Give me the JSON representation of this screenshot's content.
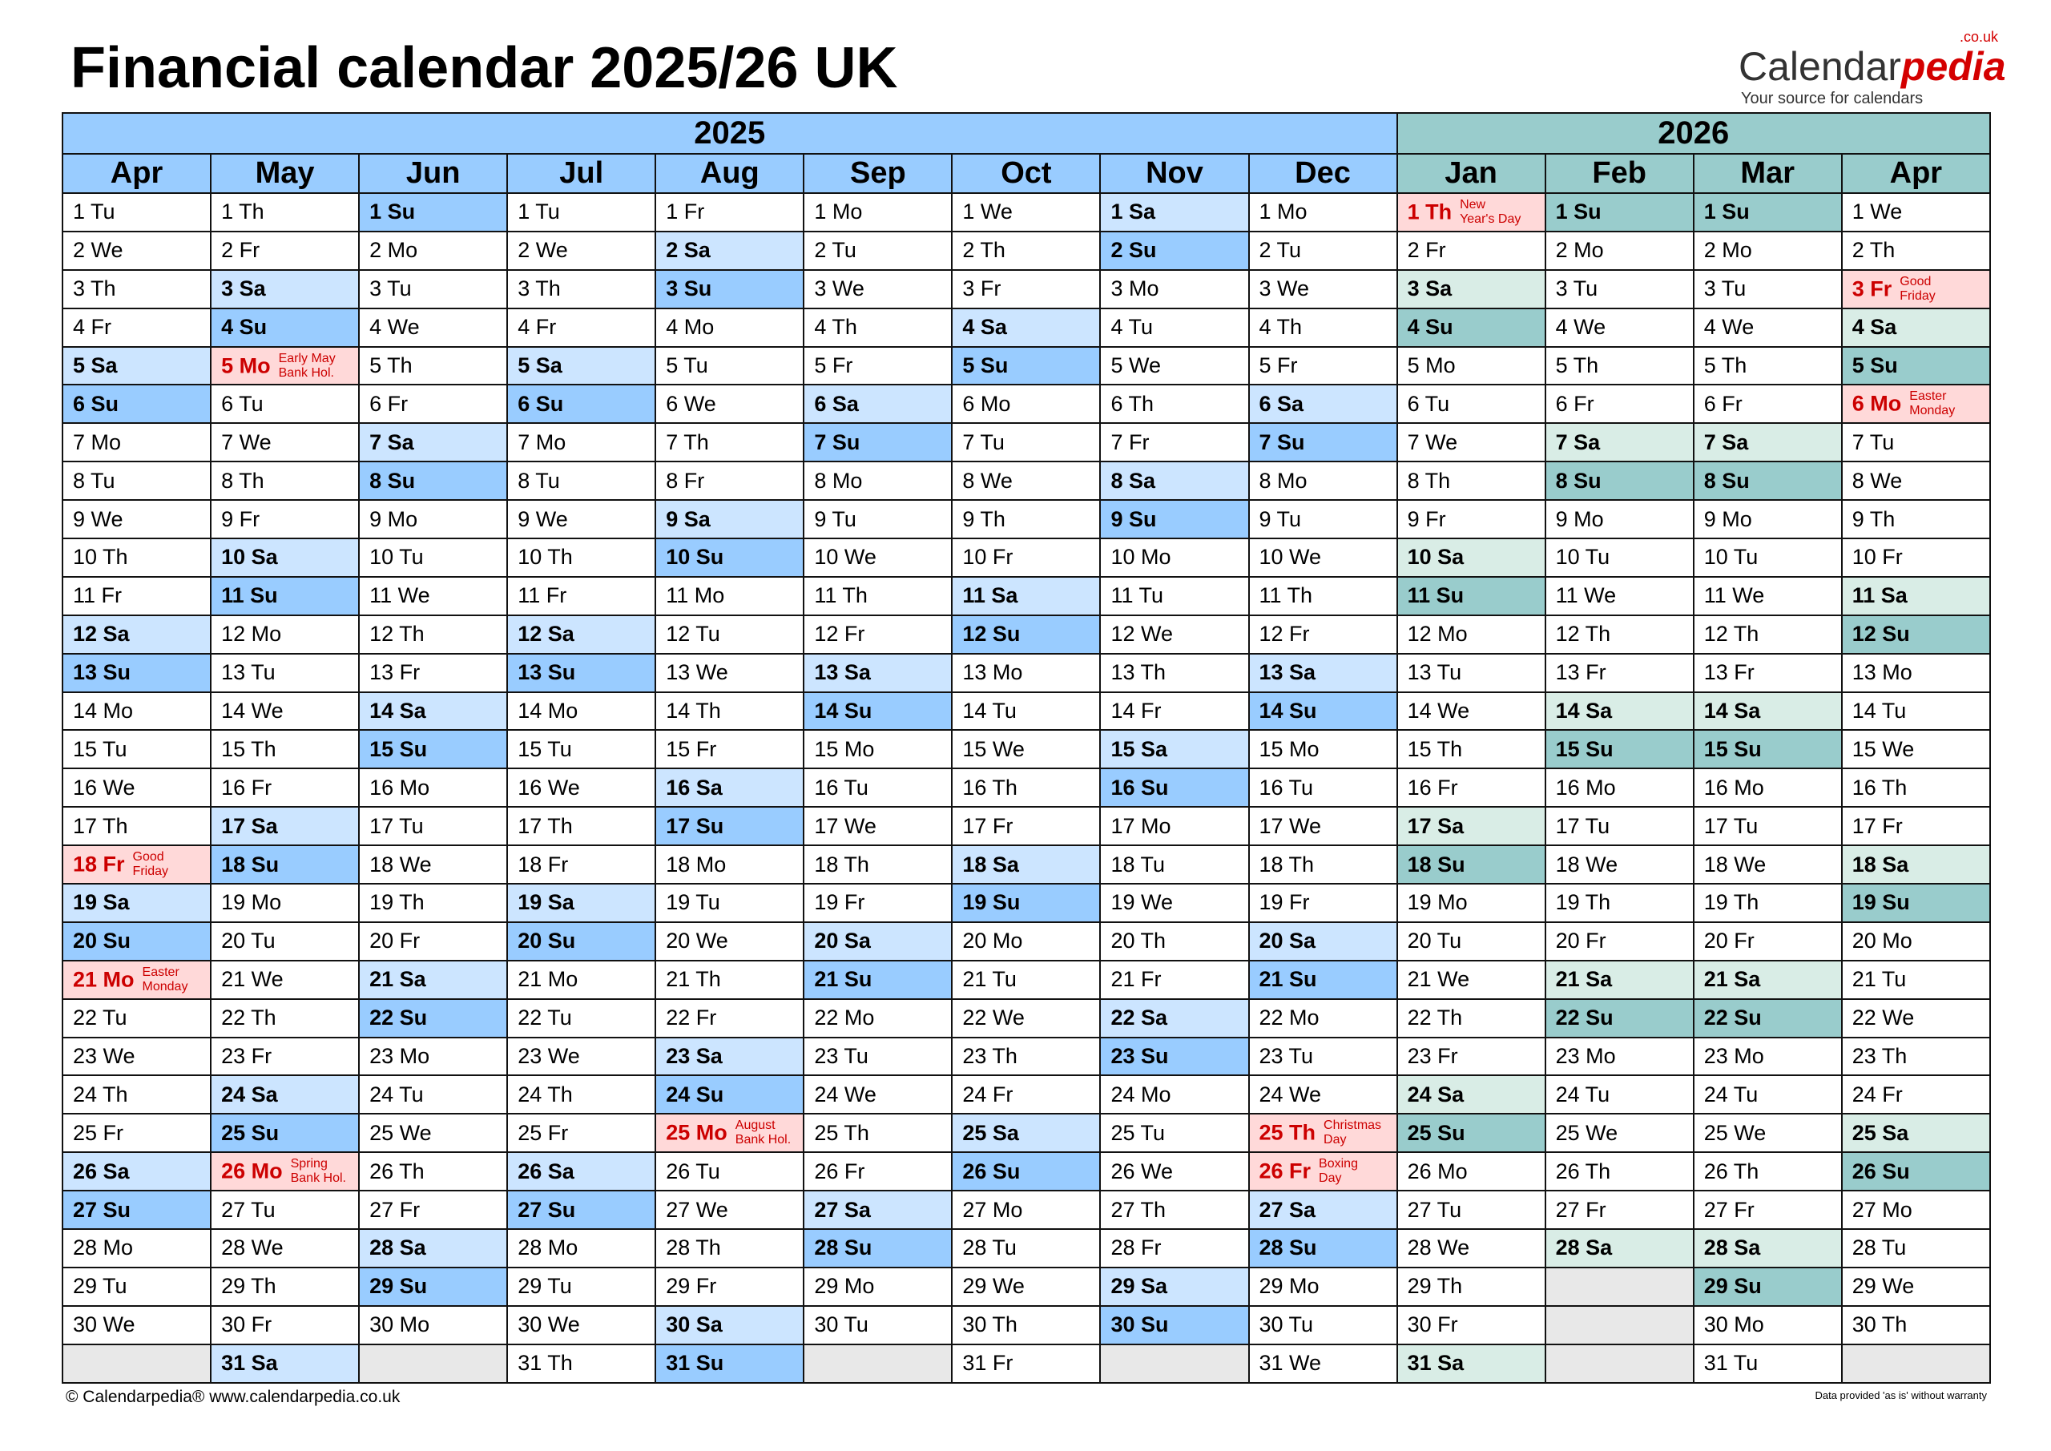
{
  "title": "Financial calendar 2025/26 UK",
  "logo": {
    "name_part1": "Calendar",
    "name_part2": "pedia",
    "domain": ".co.uk",
    "tagline": "Your source for calendars"
  },
  "colors": {
    "header_2025": "#99ccff",
    "saturday_2025": "#cce5ff",
    "sunday_2025": "#99ccff",
    "header_2026": "#99cccc",
    "saturday_2026": "#d9ede6",
    "sunday_2026": "#99cccc",
    "holiday_bg": "#ffd9d9",
    "holiday_text": "#cc0000",
    "empty": "#e8e8e8"
  },
  "years": [
    {
      "label": "2025",
      "months": 9
    },
    {
      "label": "2026",
      "months": 4
    }
  ],
  "months": [
    {
      "name": "Apr",
      "year": "2025",
      "days": [
        "1 Tu",
        "2 We",
        "3 Th",
        "4 Fr",
        "5 Sa",
        "6 Su",
        "7 Mo",
        "8 Tu",
        "9 We",
        "10 Th",
        "11 Fr",
        "12 Sa",
        "13 Su",
        "14 Mo",
        "15 Tu",
        "16 We",
        "17 Th",
        "18 Fr",
        "19 Sa",
        "20 Su",
        "21 Mo",
        "22 Tu",
        "23 We",
        "24 Th",
        "25 Fr",
        "26 Sa",
        "27 Su",
        "28 Mo",
        "29 Tu",
        "30 We"
      ],
      "holidays": {
        "18": "Good\nFriday",
        "21": "Easter\nMonday"
      }
    },
    {
      "name": "May",
      "year": "2025",
      "days": [
        "1 Th",
        "2 Fr",
        "3 Sa",
        "4 Su",
        "5 Mo",
        "6 Tu",
        "7 We",
        "8 Th",
        "9 Fr",
        "10 Sa",
        "11 Su",
        "12 Mo",
        "13 Tu",
        "14 We",
        "15 Th",
        "16 Fr",
        "17 Sa",
        "18 Su",
        "19 Mo",
        "20 Tu",
        "21 We",
        "22 Th",
        "23 Fr",
        "24 Sa",
        "25 Su",
        "26 Mo",
        "27 Tu",
        "28 We",
        "29 Th",
        "30 Fr",
        "31 Sa"
      ],
      "holidays": {
        "5": "Early May\nBank Hol.",
        "26": "Spring\nBank Hol."
      }
    },
    {
      "name": "Jun",
      "year": "2025",
      "days": [
        "1 Su",
        "2 Mo",
        "3 Tu",
        "4 We",
        "5 Th",
        "6 Fr",
        "7 Sa",
        "8 Su",
        "9 Mo",
        "10 Tu",
        "11 We",
        "12 Th",
        "13 Fr",
        "14 Sa",
        "15 Su",
        "16 Mo",
        "17 Tu",
        "18 We",
        "19 Th",
        "20 Fr",
        "21 Sa",
        "22 Su",
        "23 Mo",
        "24 Tu",
        "25 We",
        "26 Th",
        "27 Fr",
        "28 Sa",
        "29 Su",
        "30 Mo"
      ],
      "holidays": {}
    },
    {
      "name": "Jul",
      "year": "2025",
      "days": [
        "1 Tu",
        "2 We",
        "3 Th",
        "4 Fr",
        "5 Sa",
        "6 Su",
        "7 Mo",
        "8 Tu",
        "9 We",
        "10 Th",
        "11 Fr",
        "12 Sa",
        "13 Su",
        "14 Mo",
        "15 Tu",
        "16 We",
        "17 Th",
        "18 Fr",
        "19 Sa",
        "20 Su",
        "21 Mo",
        "22 Tu",
        "23 We",
        "24 Th",
        "25 Fr",
        "26 Sa",
        "27 Su",
        "28 Mo",
        "29 Tu",
        "30 We",
        "31 Th"
      ],
      "holidays": {}
    },
    {
      "name": "Aug",
      "year": "2025",
      "days": [
        "1 Fr",
        "2 Sa",
        "3 Su",
        "4 Mo",
        "5 Tu",
        "6 We",
        "7 Th",
        "8 Fr",
        "9 Sa",
        "10 Su",
        "11 Mo",
        "12 Tu",
        "13 We",
        "14 Th",
        "15 Fr",
        "16 Sa",
        "17 Su",
        "18 Mo",
        "19 Tu",
        "20 We",
        "21 Th",
        "22 Fr",
        "23 Sa",
        "24 Su",
        "25 Mo",
        "26 Tu",
        "27 We",
        "28 Th",
        "29 Fr",
        "30 Sa",
        "31 Su"
      ],
      "holidays": {
        "25": "August\nBank Hol."
      }
    },
    {
      "name": "Sep",
      "year": "2025",
      "days": [
        "1 Mo",
        "2 Tu",
        "3 We",
        "4 Th",
        "5 Fr",
        "6 Sa",
        "7 Su",
        "8 Mo",
        "9 Tu",
        "10 We",
        "11 Th",
        "12 Fr",
        "13 Sa",
        "14 Su",
        "15 Mo",
        "16 Tu",
        "17 We",
        "18 Th",
        "19 Fr",
        "20 Sa",
        "21 Su",
        "22 Mo",
        "23 Tu",
        "24 We",
        "25 Th",
        "26 Fr",
        "27 Sa",
        "28 Su",
        "29 Mo",
        "30 Tu"
      ],
      "holidays": {}
    },
    {
      "name": "Oct",
      "year": "2025",
      "days": [
        "1 We",
        "2 Th",
        "3 Fr",
        "4 Sa",
        "5 Su",
        "6 Mo",
        "7 Tu",
        "8 We",
        "9 Th",
        "10 Fr",
        "11 Sa",
        "12 Su",
        "13 Mo",
        "14 Tu",
        "15 We",
        "16 Th",
        "17 Fr",
        "18 Sa",
        "19 Su",
        "20 Mo",
        "21 Tu",
        "22 We",
        "23 Th",
        "24 Fr",
        "25 Sa",
        "26 Su",
        "27 Mo",
        "28 Tu",
        "29 We",
        "30 Th",
        "31 Fr"
      ],
      "holidays": {}
    },
    {
      "name": "Nov",
      "year": "2025",
      "days": [
        "1 Sa",
        "2 Su",
        "3 Mo",
        "4 Tu",
        "5 We",
        "6 Th",
        "7 Fr",
        "8 Sa",
        "9 Su",
        "10 Mo",
        "11 Tu",
        "12 We",
        "13 Th",
        "14 Fr",
        "15 Sa",
        "16 Su",
        "17 Mo",
        "18 Tu",
        "19 We",
        "20 Th",
        "21 Fr",
        "22 Sa",
        "23 Su",
        "24 Mo",
        "25 Tu",
        "26 We",
        "27 Th",
        "28 Fr",
        "29 Sa",
        "30 Su"
      ],
      "holidays": {}
    },
    {
      "name": "Dec",
      "year": "2025",
      "days": [
        "1 Mo",
        "2 Tu",
        "3 We",
        "4 Th",
        "5 Fr",
        "6 Sa",
        "7 Su",
        "8 Mo",
        "9 Tu",
        "10 We",
        "11 Th",
        "12 Fr",
        "13 Sa",
        "14 Su",
        "15 Mo",
        "16 Tu",
        "17 We",
        "18 Th",
        "19 Fr",
        "20 Sa",
        "21 Su",
        "22 Mo",
        "23 Tu",
        "24 We",
        "25 Th",
        "26 Fr",
        "27 Sa",
        "28 Su",
        "29 Mo",
        "30 Tu",
        "31 We"
      ],
      "holidays": {
        "25": "Christmas\nDay",
        "26": "Boxing\nDay"
      }
    },
    {
      "name": "Jan",
      "year": "2026",
      "days": [
        "1 Th",
        "2 Fr",
        "3 Sa",
        "4 Su",
        "5 Mo",
        "6 Tu",
        "7 We",
        "8 Th",
        "9 Fr",
        "10 Sa",
        "11 Su",
        "12 Mo",
        "13 Tu",
        "14 We",
        "15 Th",
        "16 Fr",
        "17 Sa",
        "18 Su",
        "19 Mo",
        "20 Tu",
        "21 We",
        "22 Th",
        "23 Fr",
        "24 Sa",
        "25 Su",
        "26 Mo",
        "27 Tu",
        "28 We",
        "29 Th",
        "30 Fr",
        "31 Sa"
      ],
      "holidays": {
        "1": "New\nYear's Day"
      }
    },
    {
      "name": "Feb",
      "year": "2026",
      "days": [
        "1 Su",
        "2 Mo",
        "3 Tu",
        "4 We",
        "5 Th",
        "6 Fr",
        "7 Sa",
        "8 Su",
        "9 Mo",
        "10 Tu",
        "11 We",
        "12 Th",
        "13 Fr",
        "14 Sa",
        "15 Su",
        "16 Mo",
        "17 Tu",
        "18 We",
        "19 Th",
        "20 Fr",
        "21 Sa",
        "22 Su",
        "23 Mo",
        "24 Tu",
        "25 We",
        "26 Th",
        "27 Fr",
        "28 Sa"
      ],
      "holidays": {}
    },
    {
      "name": "Mar",
      "year": "2026",
      "days": [
        "1 Su",
        "2 Mo",
        "3 Tu",
        "4 We",
        "5 Th",
        "6 Fr",
        "7 Sa",
        "8 Su",
        "9 Mo",
        "10 Tu",
        "11 We",
        "12 Th",
        "13 Fr",
        "14 Sa",
        "15 Su",
        "16 Mo",
        "17 Tu",
        "18 We",
        "19 Th",
        "20 Fr",
        "21 Sa",
        "22 Su",
        "23 Mo",
        "24 Tu",
        "25 We",
        "26 Th",
        "27 Fr",
        "28 Sa",
        "29 Su",
        "30 Mo",
        "31 Tu"
      ],
      "holidays": {}
    },
    {
      "name": "Apr",
      "year": "2026",
      "days": [
        "1 We",
        "2 Th",
        "3 Fr",
        "4 Sa",
        "5 Su",
        "6 Mo",
        "7 Tu",
        "8 We",
        "9 Th",
        "10 Fr",
        "11 Sa",
        "12 Su",
        "13 Mo",
        "14 Tu",
        "15 We",
        "16 Th",
        "17 Fr",
        "18 Sa",
        "19 Su",
        "20 Mo",
        "21 Tu",
        "22 We",
        "23 Th",
        "24 Fr",
        "25 Sa",
        "26 Su",
        "27 Mo",
        "28 Tu",
        "29 We",
        "30 Th"
      ],
      "holidays": {
        "3": "Good\nFriday",
        "6": "Easter\nMonday"
      }
    }
  ],
  "footer": {
    "copyright": "© Calendarpedia®   www.calendarpedia.co.uk",
    "disclaimer": "Data provided 'as is' without warranty"
  }
}
